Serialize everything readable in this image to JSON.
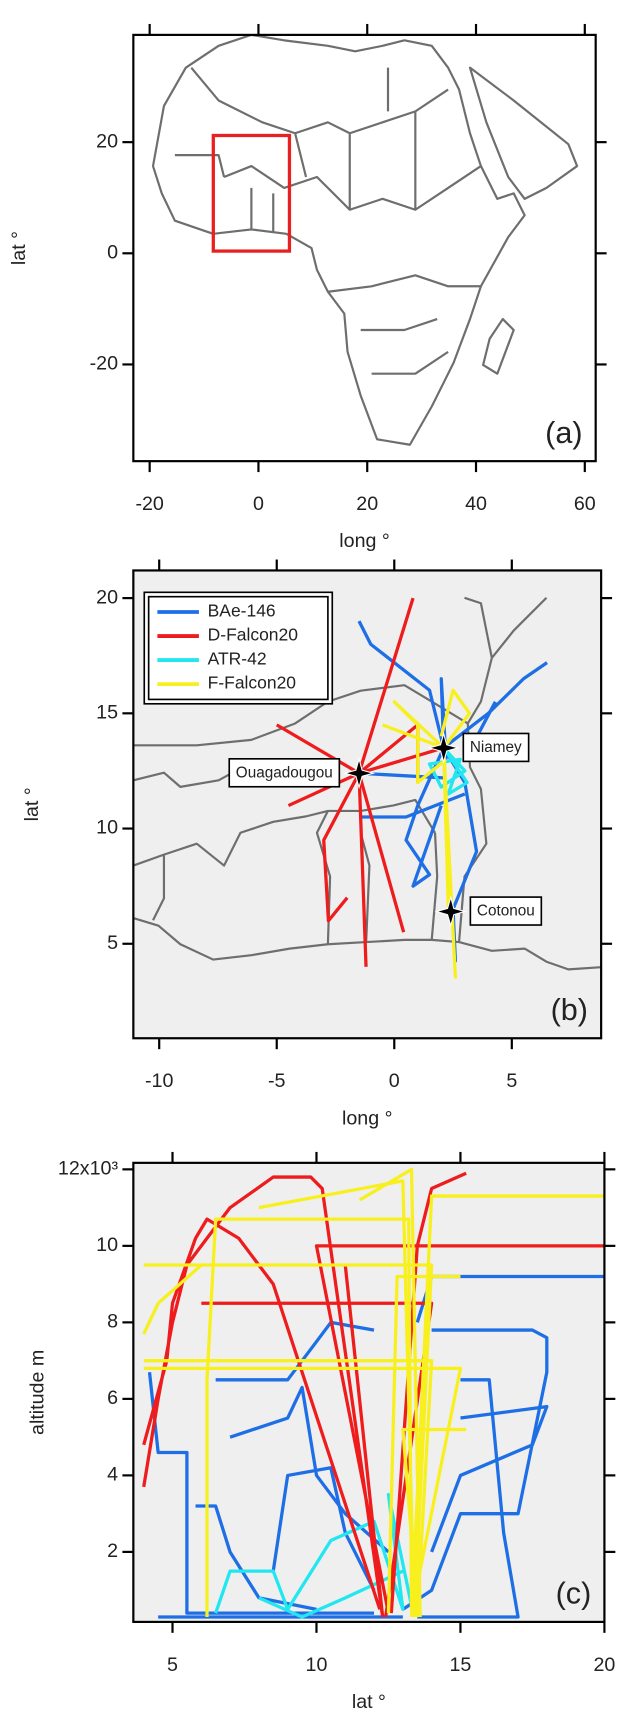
{
  "chart_data": [
    {
      "type": "map",
      "xlabel": "long °",
      "ylabel": "lat °",
      "annotation": "(a)",
      "xlim": [
        -23,
        62
      ],
      "ylim": [
        -37.4,
        39.3
      ],
      "xticks": [
        -20,
        0,
        20,
        40,
        60
      ],
      "yticks": [
        -20,
        0,
        20
      ],
      "region": {
        "xlim": [
          -8.3,
          5.7
        ],
        "ylim": [
          0.4,
          21.2
        ],
        "color": "#e82020"
      }
    },
    {
      "type": "map",
      "xlabel": "long °",
      "ylabel": "lat °",
      "annotation": "(b)",
      "xlim": [
        -11.1,
        8.8
      ],
      "ylim": [
        0.9,
        21.2
      ],
      "xticks": [
        -10,
        -5,
        0,
        5
      ],
      "yticks": [
        5,
        10,
        15,
        20
      ],
      "legend": "upper left",
      "series": [
        {
          "name": "BAe-146",
          "color": "#1e6fe6",
          "x": [
            2.1,
            4,
            5.5,
            6.5,
            null,
            2.1,
            1.5,
            -1,
            -1.5,
            null,
            2.1,
            2,
            2.2,
            null,
            2.1,
            1,
            0.5,
            1.5,
            0.8,
            2,
            null,
            2.1,
            3,
            3.5,
            2.5,
            2.6,
            null,
            -1.5,
            2.1,
            null,
            -1.5,
            0.5,
            3,
            null,
            4.3,
            3
          ],
          "y": [
            13.5,
            15,
            16.5,
            17.2,
            null,
            13.5,
            16,
            18,
            19,
            null,
            13.5,
            16.5,
            13,
            null,
            13.5,
            11,
            9.5,
            8,
            7.5,
            11,
            null,
            13.5,
            12,
            9,
            6.5,
            4.2,
            null,
            12.4,
            12.2,
            null,
            10.5,
            10.5,
            11.5,
            null,
            15.5,
            13
          ]
        },
        {
          "name": "D-Falcon20",
          "color": "#ee1c1c",
          "x": [
            -1.5,
            0.8,
            null,
            -1.5,
            -1.2,
            null,
            -1.5,
            -5,
            null,
            -1.5,
            -4.5,
            null,
            -1.5,
            -3,
            -2.8,
            -2,
            null,
            -1.5,
            0.4,
            null,
            -1.5,
            2.1,
            null,
            -1.5,
            1,
            1
          ],
          "y": [
            12.4,
            20,
            null,
            12.4,
            4,
            null,
            12.4,
            14.5,
            null,
            12.4,
            11,
            null,
            12.4,
            9.5,
            6,
            7,
            null,
            12.4,
            5.5,
            null,
            12.4,
            13.5,
            null,
            12.4,
            14.5,
            12
          ]
        },
        {
          "name": "ATR-42",
          "color": "#22e6f0",
          "x": [
            2.1,
            3,
            2,
            1.5,
            2.8,
            2.3,
            3.1,
            2.1
          ],
          "y": [
            13.5,
            12.5,
            11.8,
            12.8,
            13,
            11.5,
            12,
            13.5
          ]
        },
        {
          "name": "F-Falcon20",
          "color": "#f7f01e",
          "x": [
            2.1,
            0,
            1,
            1,
            2.2,
            null,
            2.1,
            2.6,
            null,
            2.1,
            2.3,
            null,
            2.1,
            3.2,
            2.5,
            2,
            null,
            2.1,
            -0.5
          ],
          "y": [
            13.5,
            15.5,
            14.5,
            12,
            13,
            null,
            13.5,
            3.5,
            null,
            13.5,
            6.5,
            null,
            13.5,
            15,
            16,
            14,
            null,
            13.5,
            14.5
          ]
        }
      ],
      "points": [
        {
          "name": "Ouagadougou",
          "x": -1.5,
          "y": 12.4
        },
        {
          "name": "Niamey",
          "x": 2.1,
          "y": 13.5
        },
        {
          "name": "Cotonou",
          "x": 2.4,
          "y": 6.4
        }
      ]
    },
    {
      "type": "line",
      "xlabel": "lat °",
      "ylabel": "altitude m",
      "annotation": "(c)",
      "xlim": [
        3.64,
        20
      ],
      "ylim": [
        0.17,
        12.17
      ],
      "xticks": [
        5,
        10,
        15,
        20
      ],
      "yticks": [
        2,
        4,
        6,
        8,
        10,
        {
          "value": 12,
          "label": "12x10³"
        }
      ],
      "series": [
        {
          "name": "BAe-146",
          "color": "#1e6fe6",
          "x": [
            4.2,
            4.5,
            5.5,
            5.5,
            12,
            null,
            5.8,
            6.5,
            7,
            8,
            10,
            null,
            6.5,
            9,
            10,
            10.5,
            12,
            null,
            7,
            9,
            9.5,
            10,
            11,
            12.5,
            null,
            14,
            17.5,
            18,
            18,
            17,
            15,
            14,
            13,
            null,
            15,
            16,
            16.5,
            17,
            13.5,
            null,
            20,
            14,
            13.5,
            null,
            8.5,
            9,
            10.5,
            11,
            12,
            null,
            15,
            18,
            17.5,
            15,
            14,
            null,
            4.5,
            13
          ],
          "y": [
            6.7,
            4.6,
            4.6,
            0.4,
            0.4,
            null,
            3.2,
            3.2,
            2,
            0.8,
            0.5,
            null,
            6.5,
            6.5,
            7.5,
            8,
            7.8,
            null,
            5,
            5.5,
            6.3,
            4,
            3,
            2,
            null,
            7.8,
            7.8,
            7.6,
            6.7,
            3,
            3,
            1,
            0.5,
            null,
            6.5,
            6.5,
            2.5,
            0.3,
            0.3,
            null,
            9.2,
            9.2,
            8,
            null,
            1.5,
            4,
            4.2,
            2.5,
            1,
            null,
            5.5,
            5.8,
            4.8,
            4,
            2,
            null,
            0.3,
            0.3
          ]
        },
        {
          "name": "ATR-42",
          "color": "#22e6f0",
          "x": [
            6.5,
            7,
            8.5,
            9,
            10.5,
            12,
            13,
            12.5,
            13.3,
            null,
            8,
            9.5,
            11,
            13
          ],
          "y": [
            0.4,
            1.5,
            1.5,
            0.5,
            2.3,
            2.8,
            0.5,
            3.5,
            0.6,
            null,
            0.8,
            0.3,
            0.8,
            1.5
          ]
        },
        {
          "name": "D-Falcon20",
          "color": "#ee1c1c",
          "x": [
            4,
            4.5,
            5,
            5.5,
            6.5,
            7,
            8.5,
            9.8,
            10.2,
            12.3,
            null,
            4,
            4.8,
            5,
            5.8,
            6.2,
            7.3,
            8.5,
            12.2,
            null,
            20,
            10,
            12.5,
            null,
            15.2,
            14,
            13.5,
            12.6,
            null,
            6,
            14,
            12.4,
            null,
            11,
            12.3
          ],
          "y": [
            3.7,
            6,
            8,
            9.5,
            10.5,
            11,
            11.8,
            11.8,
            11.5,
            0.3,
            null,
            4.8,
            7,
            8.5,
            10.2,
            10.7,
            10.2,
            9,
            0.5,
            null,
            10,
            10,
            0.4,
            null,
            11.9,
            11.5,
            10,
            0.4,
            null,
            8.5,
            8.5,
            0.3,
            null,
            9.5,
            0.3
          ]
        },
        {
          "name": "F-Falcon20",
          "color": "#f7f01e",
          "x": [
            20,
            14,
            13.3,
            null,
            4,
            14,
            13.4,
            null,
            4,
            4.5,
            6,
            null,
            4,
            14,
            13.5,
            null,
            4,
            15,
            13.3,
            null,
            6.2,
            6.2,
            6.5,
            13.2,
            13.3,
            null,
            8,
            13,
            13.4,
            null,
            15.2,
            13,
            13.5,
            null,
            11.5,
            13.3,
            13.6,
            null,
            15,
            12.8,
            12.5
          ],
          "y": [
            11.3,
            11.3,
            0.3,
            null,
            9.5,
            9.5,
            0.3,
            null,
            7.7,
            8.5,
            9.5,
            null,
            7,
            7,
            0.3,
            null,
            6.8,
            6.8,
            0.4,
            null,
            0.3,
            6.5,
            10.7,
            10.7,
            0.5,
            null,
            11,
            11.7,
            0.3,
            null,
            5.2,
            5.2,
            0.5,
            null,
            11.2,
            12,
            0.3,
            null,
            9.2,
            9.2,
            0.4
          ]
        }
      ]
    }
  ]
}
